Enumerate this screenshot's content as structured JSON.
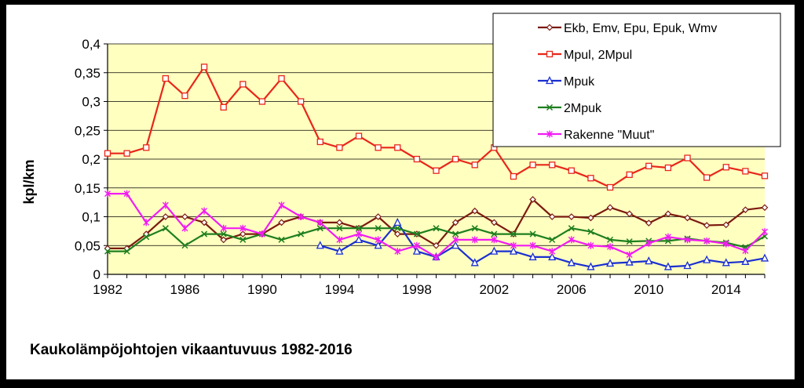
{
  "chart_data": {
    "type": "line",
    "title": "Kaukolämpöjohtojen vikaantuvuus 1982-2016",
    "xlabel": "",
    "ylabel": "kpl/km",
    "ylim": [
      0,
      0.4
    ],
    "xlim": [
      1982,
      2016
    ],
    "xticks": [
      1982,
      1986,
      1990,
      1994,
      1998,
      2002,
      2006,
      2010,
      2014
    ],
    "yticks": [
      "0",
      "0,05",
      "0,1",
      "0,15",
      "0,2",
      "0,25",
      "0,3",
      "0,35",
      "0,4"
    ],
    "grid": "horizontal",
    "legend_position": "top-right",
    "series": [
      {
        "name": "Ekb, Emv, Epu, Epuk, Wmv",
        "color": "#7B1A10",
        "marker": "diamond",
        "x": [
          1982,
          1983,
          1984,
          1985,
          1986,
          1987,
          1988,
          1989,
          1990,
          1991,
          1992,
          1993,
          1994,
          1995,
          1996,
          1997,
          1998,
          1999,
          2000,
          2001,
          2002,
          2003,
          2004,
          2005,
          2006,
          2007,
          2008,
          2009,
          2010,
          2011,
          2012,
          2013,
          2014,
          2015,
          2016
        ],
        "y": [
          0.045,
          0.045,
          0.07,
          0.1,
          0.1,
          0.09,
          0.06,
          0.07,
          0.07,
          0.09,
          0.1,
          0.09,
          0.09,
          0.08,
          0.1,
          0.07,
          0.07,
          0.05,
          0.09,
          0.11,
          0.09,
          0.07,
          0.13,
          0.1,
          0.1,
          0.098,
          0.116,
          0.105,
          0.089,
          0.105,
          0.098,
          0.085,
          0.086,
          0.112,
          0.116
        ]
      },
      {
        "name": "Mpul, 2Mpul",
        "color": "#E8261A",
        "marker": "square",
        "x": [
          1982,
          1983,
          1984,
          1985,
          1986,
          1987,
          1988,
          1989,
          1990,
          1991,
          1992,
          1993,
          1994,
          1995,
          1996,
          1997,
          1998,
          1999,
          2000,
          2001,
          2002,
          2003,
          2004,
          2005,
          2006,
          2007,
          2008,
          2009,
          2010,
          2011,
          2012,
          2013,
          2014,
          2015,
          2016
        ],
        "y": [
          0.21,
          0.21,
          0.22,
          0.34,
          0.31,
          0.36,
          0.29,
          0.33,
          0.3,
          0.34,
          0.3,
          0.23,
          0.22,
          0.24,
          0.22,
          0.22,
          0.2,
          0.18,
          0.2,
          0.19,
          0.22,
          0.17,
          0.19,
          0.19,
          0.18,
          0.167,
          0.151,
          0.173,
          0.188,
          0.185,
          0.202,
          0.168,
          0.186,
          0.179,
          0.171
        ]
      },
      {
        "name": "Mpuk",
        "color": "#1A2FD0",
        "marker": "triangle",
        "x": [
          1993,
          1994,
          1995,
          1996,
          1997,
          1998,
          1999,
          2000,
          2001,
          2002,
          2003,
          2004,
          2005,
          2006,
          2007,
          2008,
          2009,
          2010,
          2011,
          2012,
          2013,
          2014,
          2015,
          2016
        ],
        "y": [
          0.05,
          0.04,
          0.06,
          0.05,
          0.09,
          0.04,
          0.03,
          0.05,
          0.02,
          0.04,
          0.04,
          0.03,
          0.03,
          0.02,
          0.013,
          0.019,
          0.021,
          0.023,
          0.013,
          0.015,
          0.025,
          0.02,
          0.022,
          0.028
        ]
      },
      {
        "name": "2Mpuk",
        "color": "#1E7F1E",
        "marker": "x",
        "x": [
          1982,
          1983,
          1984,
          1985,
          1986,
          1987,
          1988,
          1989,
          1990,
          1991,
          1992,
          1993,
          1994,
          1995,
          1996,
          1997,
          1998,
          1999,
          2000,
          2001,
          2002,
          2003,
          2004,
          2005,
          2006,
          2007,
          2008,
          2009,
          2010,
          2011,
          2012,
          2013,
          2014,
          2015,
          2016
        ],
        "y": [
          0.04,
          0.04,
          0.065,
          0.08,
          0.05,
          0.07,
          0.07,
          0.06,
          0.07,
          0.06,
          0.07,
          0.08,
          0.08,
          0.08,
          0.08,
          0.08,
          0.07,
          0.08,
          0.07,
          0.08,
          0.07,
          0.07,
          0.07,
          0.06,
          0.08,
          0.074,
          0.06,
          0.057,
          0.058,
          0.058,
          0.062,
          0.058,
          0.055,
          0.047,
          0.066
        ]
      },
      {
        "name": "Rakenne \"Muut\"",
        "color": "#F21CF2",
        "marker": "star",
        "x": [
          1982,
          1983,
          1984,
          1985,
          1986,
          1987,
          1988,
          1989,
          1990,
          1991,
          1992,
          1993,
          1994,
          1995,
          1996,
          1997,
          1998,
          1999,
          2000,
          2001,
          2002,
          2003,
          2004,
          2005,
          2006,
          2007,
          2008,
          2009,
          2010,
          2011,
          2012,
          2013,
          2014,
          2015,
          2016
        ],
        "y": [
          0.14,
          0.14,
          0.09,
          0.12,
          0.08,
          0.11,
          0.08,
          0.08,
          0.07,
          0.12,
          0.1,
          0.09,
          0.06,
          0.07,
          0.06,
          0.04,
          0.05,
          0.03,
          0.06,
          0.06,
          0.06,
          0.05,
          0.05,
          0.04,
          0.06,
          0.05,
          0.048,
          0.034,
          0.054,
          0.065,
          0.06,
          0.058,
          0.053,
          0.041,
          0.074
        ]
      }
    ]
  }
}
